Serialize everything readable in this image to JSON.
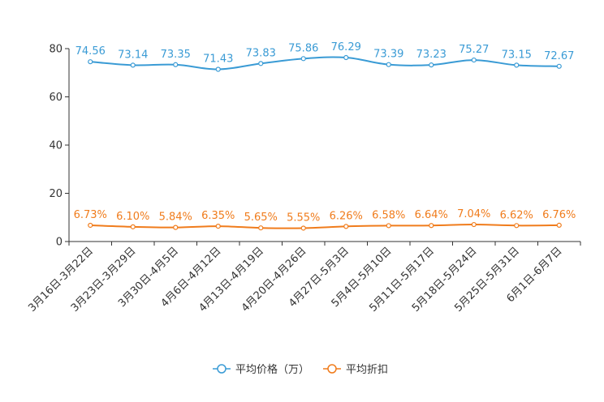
{
  "chart_data": {
    "type": "line",
    "categories": [
      "3月16日-3月22日",
      "3月23日-3月29日",
      "3月30日-4月5日",
      "4月6日-4月12日",
      "4月13日-4月19日",
      "4月20日-4月26日",
      "4月27日-5月3日",
      "5月4日-5月10日",
      "5月11日-5月17日",
      "5月18日-5月24日",
      "5月25日-5月31日",
      "6月1日-6月7日"
    ],
    "ylim": [
      0,
      80
    ],
    "yticks": [
      0,
      20,
      40,
      60,
      80
    ],
    "series": [
      {
        "name": "平均价格（万）",
        "color": "#3a9bd5",
        "values": [
          74.56,
          73.14,
          73.35,
          71.43,
          73.83,
          75.86,
          76.29,
          73.39,
          73.23,
          75.27,
          73.15,
          72.67
        ],
        "labels": [
          "74.56",
          "73.14",
          "73.35",
          "71.43",
          "73.83",
          "75.86",
          "76.29",
          "73.39",
          "73.23",
          "75.27",
          "73.15",
          "72.67"
        ]
      },
      {
        "name": "平均折扣",
        "color": "#f07c1c",
        "values": [
          6.73,
          6.1,
          5.84,
          6.35,
          5.65,
          5.55,
          6.26,
          6.58,
          6.64,
          7.04,
          6.62,
          6.76
        ],
        "labels": [
          "6.73%",
          "6.10%",
          "5.84%",
          "6.35%",
          "5.65%",
          "5.55%",
          "6.26%",
          "6.58%",
          "6.64%",
          "7.04%",
          "6.62%",
          "6.76%"
        ]
      }
    ],
    "legend_position": "bottom-center"
  }
}
